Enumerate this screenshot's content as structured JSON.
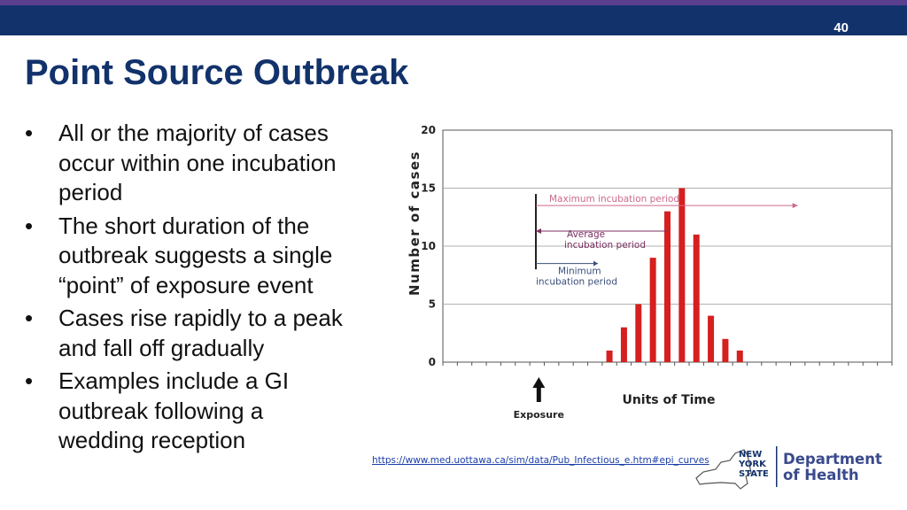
{
  "slide": {
    "number": "40",
    "title": "Point Source Outbreak",
    "bullets": [
      {
        "line1": "All or the majority of cases",
        "line2": "occur within one incubation",
        "line3": "period"
      },
      {
        "line1": "The short duration of the",
        "line2": "outbreak suggests a single",
        "line3": "“point” of exposure event"
      },
      {
        "line1": "Cases rise rapidly to a peak",
        "line2": "and fall off gradually",
        "line3": ""
      },
      {
        "line1": "Examples include a GI",
        "line2": "outbreak following a",
        "line3": "wedding reception"
      }
    ],
    "source_link": "https://www.med.uottawa.ca/sim/data/Pub_Infectious_e.htm#epi_curves"
  },
  "logo": {
    "state_lines": [
      "NEW",
      "YORK",
      "STATE"
    ],
    "dept_lines": [
      "Department",
      "of Health"
    ]
  },
  "chart_data": {
    "type": "bar",
    "xlabel": "Units of Time",
    "ylabel": "Number of cases",
    "ylim": [
      0,
      20
    ],
    "yticks": [
      "0",
      "5",
      "10",
      "15",
      "20"
    ],
    "grid": false,
    "x_slots": 31,
    "exposure_slot": 6,
    "exposure_label": "Exposure",
    "bars": [
      {
        "slot": 11,
        "value": 1
      },
      {
        "slot": 12,
        "value": 3
      },
      {
        "slot": 13,
        "value": 5
      },
      {
        "slot": 14,
        "value": 9
      },
      {
        "slot": 15,
        "value": 13
      },
      {
        "slot": 16,
        "value": 15
      },
      {
        "slot": 17,
        "value": 11
      },
      {
        "slot": 18,
        "value": 4
      },
      {
        "slot": 19,
        "value": 2
      },
      {
        "slot": 20,
        "value": 1
      }
    ],
    "bar_color": "#d61f1f",
    "annotations": {
      "maximum": "Maximum incubation period",
      "average_1": "Average",
      "average_2": "incubation period",
      "minimum_1": "Minimum",
      "minimum_2": "incubation period"
    },
    "annotation_colors": {
      "maximum": "#cc6a8e",
      "average": "#7a3060",
      "minimum": "#3b4f7a"
    }
  }
}
